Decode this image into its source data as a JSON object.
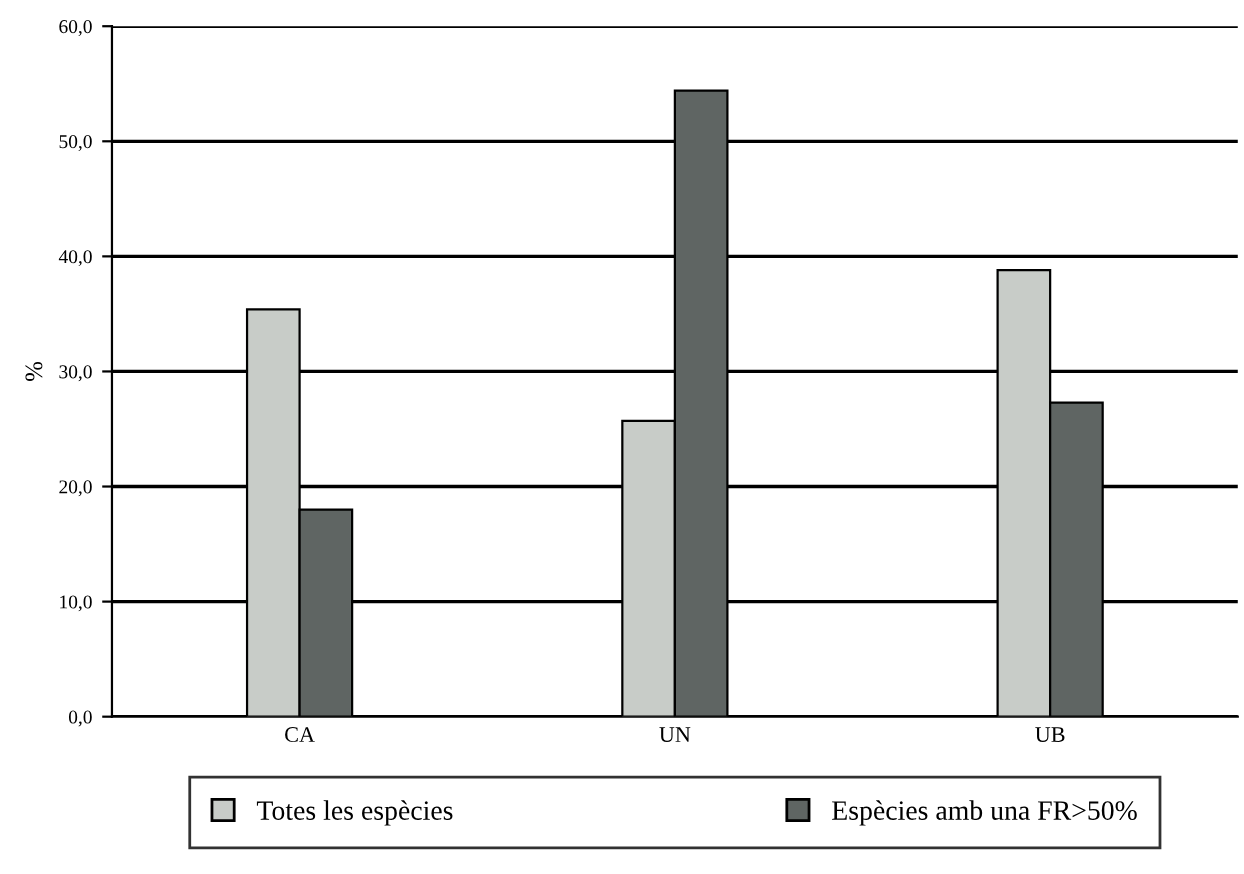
{
  "chart_data": {
    "type": "bar",
    "ylabel": "%",
    "categories": [
      "CA",
      "UN",
      "UB"
    ],
    "series": [
      {
        "name": "Totes les espècies",
        "color": "#c8ccc8",
        "values": [
          35.4,
          25.7,
          38.8
        ]
      },
      {
        "name": "Espècies amb una FR>50%",
        "color": "#5f6563",
        "values": [
          18.0,
          54.4,
          27.3
        ]
      }
    ],
    "ylim": [
      0,
      60
    ],
    "yticks": [
      {
        "value": 0,
        "label": "0,0"
      },
      {
        "value": 10,
        "label": "10,0"
      },
      {
        "value": 20,
        "label": "20,0"
      },
      {
        "value": 30,
        "label": "30,0"
      },
      {
        "value": 40,
        "label": "40,0"
      },
      {
        "value": 50,
        "label": "50,0"
      },
      {
        "value": 60,
        "label": "60,0"
      }
    ],
    "grid": "y",
    "legend": "bottom"
  }
}
